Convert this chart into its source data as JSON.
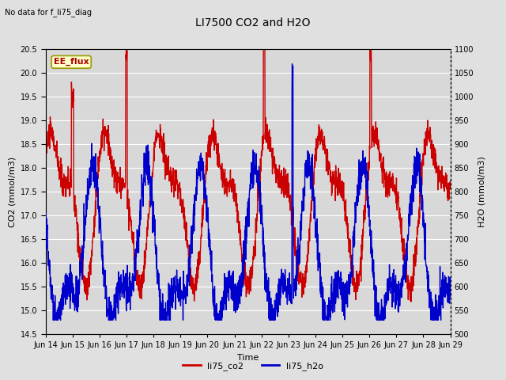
{
  "title": "LI7500 CO2 and H2O",
  "top_left_text": "No data for f_li75_diag",
  "xlabel": "Time",
  "ylabel_left": "CO2 (mmol/m3)",
  "ylabel_right": "H2O (mmol/m3)",
  "ylim_left": [
    14.5,
    20.5
  ],
  "ylim_right": [
    500,
    1100
  ],
  "xlim": [
    0,
    15
  ],
  "xtick_labels": [
    "Jun 14",
    "Jun 15",
    "Jun 16",
    "Jun 17",
    "Jun 18",
    "Jun 19",
    "Jun 20",
    "Jun 21",
    "Jun 22",
    "Jun 23",
    "Jun 24",
    "Jun 25",
    "Jun 26",
    "Jun 27",
    "Jun 28",
    "Jun 29"
  ],
  "legend_label_co2": "li75_co2",
  "legend_label_h2o": "li75_h2o",
  "legend_box_label": "EE_flux",
  "co2_color": "#cc0000",
  "h2o_color": "#0000cc",
  "bg_color": "#e0e0e0",
  "plot_bg_color": "#d8d8d8",
  "grid_color": "#ffffff",
  "legend_box_bg": "#ffffcc",
  "legend_box_edge": "#999900",
  "linewidth_co2": 1.0,
  "linewidth_h2o": 1.0,
  "title_fontsize": 10,
  "label_fontsize": 8,
  "tick_fontsize": 7
}
